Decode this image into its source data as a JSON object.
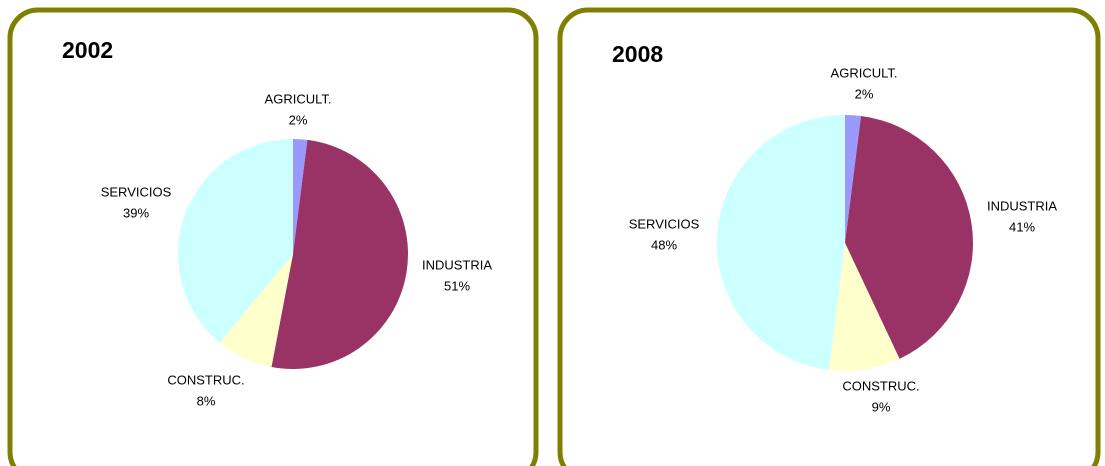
{
  "chart_data": [
    {
      "type": "pie",
      "title": "2002",
      "categories": [
        "AGRICULT.",
        "INDUSTRIA",
        "CONSTRUC.",
        "SERVICIOS"
      ],
      "values": [
        2,
        51,
        8,
        39
      ],
      "value_labels": [
        "2%",
        "51%",
        "8%",
        "39%"
      ],
      "colors": [
        "#9999ff",
        "#993366",
        "#ffffcc",
        "#ccffff"
      ]
    },
    {
      "type": "pie",
      "title": "2008",
      "categories": [
        "AGRICULT.",
        "INDUSTRIA",
        "CONSTRUC.",
        "SERVICIOS"
      ],
      "values": [
        2,
        41,
        9,
        48
      ],
      "value_labels": [
        "2%",
        "41%",
        "9%",
        "48%"
      ],
      "colors": [
        "#9999ff",
        "#993366",
        "#ffffcc",
        "#ccffff"
      ]
    }
  ]
}
